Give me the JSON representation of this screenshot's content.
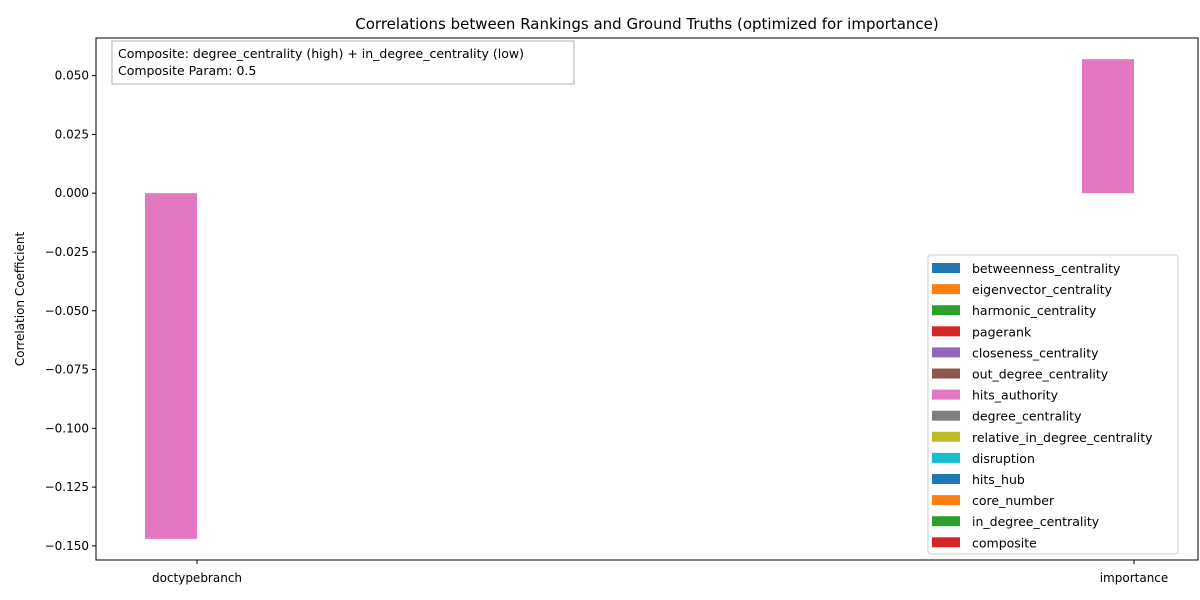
{
  "chart_data": {
    "type": "bar",
    "title": "Correlations between Rankings and Ground Truths (optimized for importance)",
    "xlabel": "",
    "ylabel": "Correlation Coefficient",
    "categories": [
      "doctypebranch",
      "importance"
    ],
    "ylim": [
      -0.156,
      0.066
    ],
    "yticks": [
      -0.15,
      -0.125,
      -0.1,
      -0.075,
      -0.05,
      -0.025,
      0.0,
      0.025,
      0.05
    ],
    "ytick_labels": [
      "−0.150",
      "−0.125",
      "−0.100",
      "−0.075",
      "−0.050",
      "−0.025",
      "0.000",
      "0.025",
      "0.050"
    ],
    "grid": false,
    "legend_position": "lower-right",
    "annotation": {
      "line1": "Composite: degree_centrality (high) + in_degree_centrality (low)",
      "line2": "Composite Param: 0.5"
    },
    "series": [
      {
        "name": "betweenness_centrality",
        "color": "#1f77b4",
        "values": [
          0,
          0
        ]
      },
      {
        "name": "eigenvector_centrality",
        "color": "#ff7f0e",
        "values": [
          0,
          0
        ]
      },
      {
        "name": "harmonic_centrality",
        "color": "#2ca02c",
        "values": [
          0,
          0
        ]
      },
      {
        "name": "pagerank",
        "color": "#d62728",
        "values": [
          0,
          0
        ]
      },
      {
        "name": "closeness_centrality",
        "color": "#9467bd",
        "values": [
          0,
          0
        ]
      },
      {
        "name": "out_degree_centrality",
        "color": "#8c564b",
        "values": [
          0,
          0
        ]
      },
      {
        "name": "hits_authority",
        "color": "#e377c2",
        "values": [
          -0.147,
          0.057
        ]
      },
      {
        "name": "degree_centrality",
        "color": "#7f7f7f",
        "values": [
          0,
          0
        ]
      },
      {
        "name": "relative_in_degree_centrality",
        "color": "#bcbd22",
        "values": [
          0,
          0
        ]
      },
      {
        "name": "disruption",
        "color": "#17becf",
        "values": [
          0,
          0
        ]
      },
      {
        "name": "hits_hub",
        "color": "#1f77b4",
        "values": [
          0,
          0
        ]
      },
      {
        "name": "core_number",
        "color": "#ff7f0e",
        "values": [
          0,
          0
        ]
      },
      {
        "name": "in_degree_centrality",
        "color": "#2ca02c",
        "values": [
          0,
          0
        ]
      },
      {
        "name": "composite",
        "color": "#d62728",
        "values": [
          0,
          0
        ]
      }
    ]
  }
}
